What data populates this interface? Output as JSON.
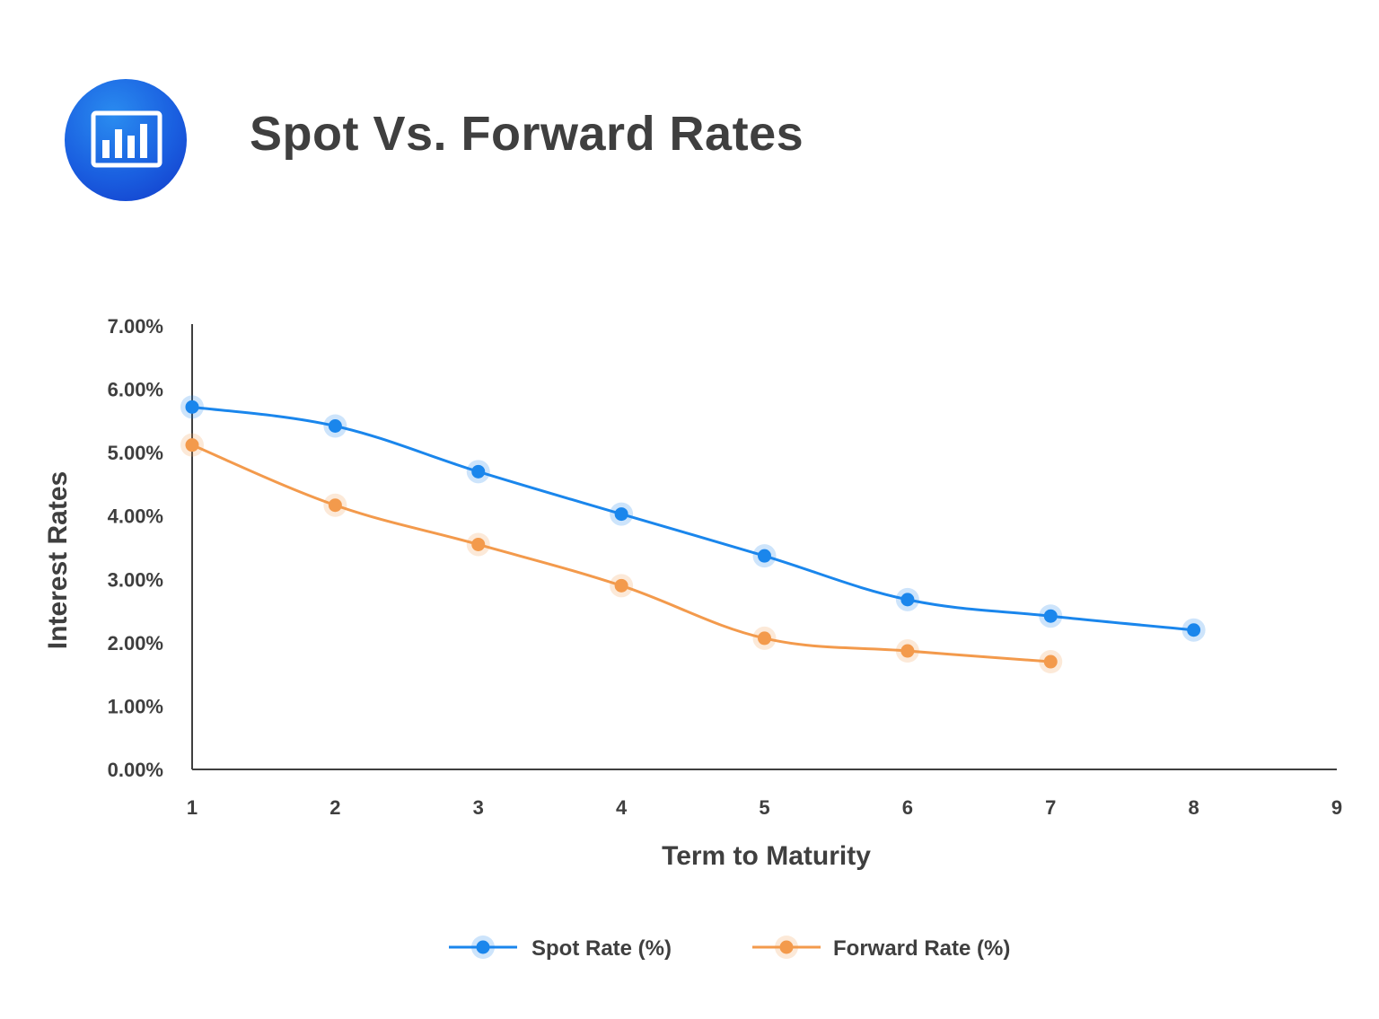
{
  "header": {
    "title": "Spot Vs. Forward Rates",
    "icon": "bar-chart-icon"
  },
  "colors": {
    "icon_bg": "#1a5fe0",
    "spot": "#1a86ec",
    "forward": "#f39a4c",
    "text": "#3f3f3f",
    "axis": "#3f3f3f"
  },
  "chart_data": {
    "type": "line",
    "xlabel": "Term to Maturity",
    "ylabel": "Interest Rates",
    "xlim": [
      1,
      9
    ],
    "ylim": [
      0,
      7
    ],
    "x_ticks": [
      "1",
      "2",
      "3",
      "4",
      "5",
      "6",
      "7",
      "8",
      "9"
    ],
    "y_ticks": [
      "0.00%",
      "1.00%",
      "2.00%",
      "3.00%",
      "4.00%",
      "5.00%",
      "6.00%",
      "7.00%"
    ],
    "grid": false,
    "legend_position": "bottom-center",
    "series": [
      {
        "name": "Spot Rate (%)",
        "color": "#1a86ec",
        "x": [
          1,
          2,
          3,
          4,
          5,
          6,
          7,
          8
        ],
        "values": [
          5.72,
          5.42,
          4.7,
          4.03,
          3.37,
          2.68,
          2.42,
          2.2
        ]
      },
      {
        "name": "Forward Rate (%)",
        "color": "#f39a4c",
        "x": [
          1,
          2,
          3,
          4,
          5,
          6,
          7
        ],
        "values": [
          5.12,
          4.17,
          3.55,
          2.9,
          2.07,
          1.87,
          1.7
        ]
      }
    ]
  }
}
